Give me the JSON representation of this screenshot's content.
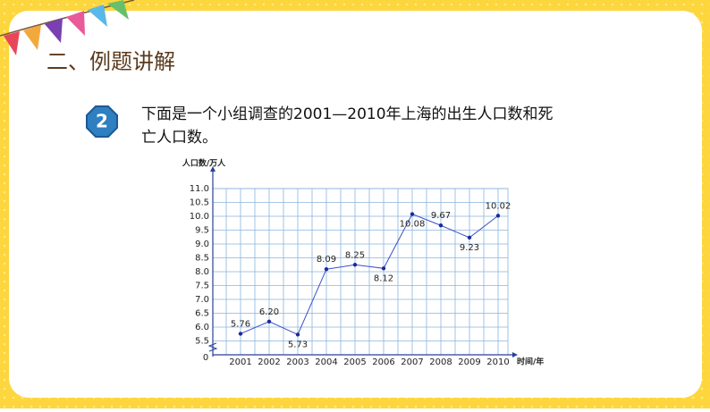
{
  "section_title": "二、例题讲解",
  "problem_number": "2",
  "problem_text": [
    "下面是一个小组调查的2001—2010年上海的出生人口数和死",
    "亡人口数。"
  ],
  "chart_data": {
    "type": "line",
    "y_axis_label": "人口数/万人",
    "x_axis_label": "时间/年",
    "origin_label": "0",
    "categories": [
      "2001",
      "2002",
      "2003",
      "2004",
      "2005",
      "2006",
      "2007",
      "2008",
      "2009",
      "2010"
    ],
    "values": [
      5.76,
      6.2,
      5.73,
      8.09,
      8.25,
      8.12,
      10.08,
      9.67,
      9.23,
      10.02
    ],
    "value_labels": [
      "5.76",
      "6.20",
      "5.73",
      "8.09",
      "8.25",
      "8.12",
      "10.08",
      "9.67",
      "9.23",
      "10.02"
    ],
    "color": "#3b4fc9",
    "ylim": [
      5.0,
      11.0
    ],
    "yticks": [
      {
        "value": 5.5,
        "label": "5.5"
      },
      {
        "value": 6.0,
        "label": "6.0"
      },
      {
        "value": 6.5,
        "label": "6.5"
      },
      {
        "value": 7.0,
        "label": "7.0"
      },
      {
        "value": 7.5,
        "label": "7.5"
      },
      {
        "value": 8.0,
        "label": "8.0"
      },
      {
        "value": 8.5,
        "label": "8.5"
      },
      {
        "value": 9.0,
        "label": "9.0"
      },
      {
        "value": 9.5,
        "label": "9.5"
      },
      {
        "value": 10.0,
        "label": "10.0"
      },
      {
        "value": 10.5,
        "label": "10.5"
      },
      {
        "value": 11.0,
        "label": "11.0"
      }
    ],
    "grid": true
  }
}
